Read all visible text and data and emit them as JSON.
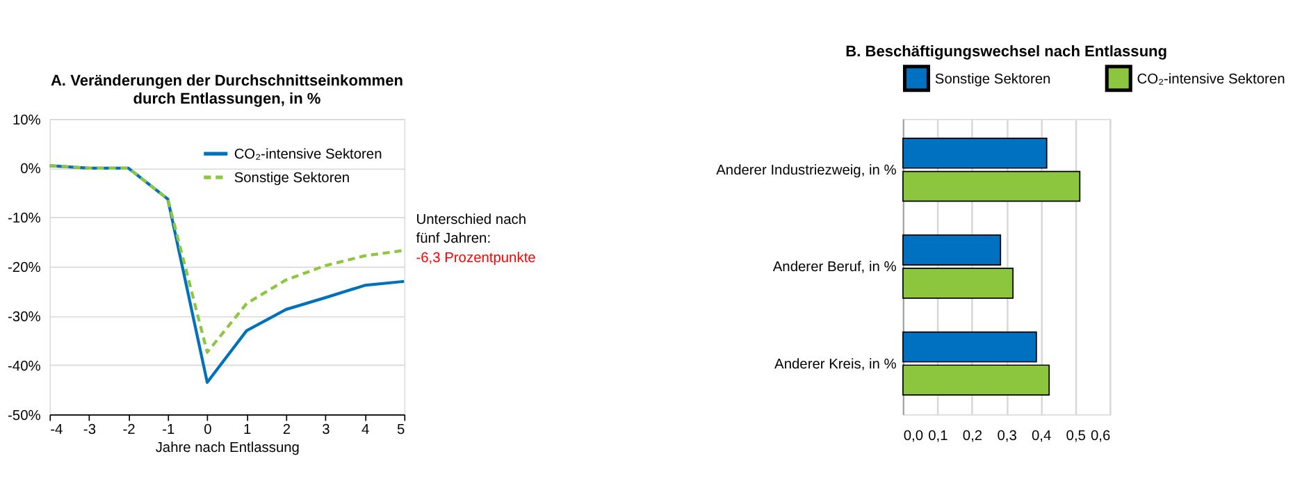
{
  "chart_data": [
    {
      "type": "line",
      "title": "A. Veränderungen der Durchschnittseinkommen\ndurch Entlassungen, in %",
      "xlabel": "Jahre nach Entlassung",
      "x": [
        -4,
        -3,
        -2,
        -1,
        0,
        1,
        2,
        3,
        4,
        5
      ],
      "series": [
        {
          "name": "CO₂-intensive Sektoren",
          "color": "#0072bc",
          "line_style": "solid",
          "values": [
            0.5,
            0,
            0,
            -6.3,
            -43.5,
            -33,
            -28.7,
            -26.3,
            -23.8,
            -23
          ]
        },
        {
          "name": "Sonstige Sektoren",
          "color": "#8dc63f",
          "line_style": "dashed",
          "values": [
            0.5,
            0,
            0,
            -6.3,
            -37.4,
            -27.5,
            -22.7,
            -19.8,
            -17.8,
            -16.7
          ]
        }
      ],
      "xlim": [
        -4,
        5
      ],
      "xticks": [
        -4,
        -3,
        -2,
        -1,
        0,
        1,
        2,
        3,
        4,
        5
      ],
      "ylim": [
        -50,
        10
      ],
      "yticks": [
        {
          "value": -50,
          "label": "-50%"
        },
        {
          "value": -40,
          "label": "-40%"
        },
        {
          "value": -30,
          "label": "-30%"
        },
        {
          "value": -20,
          "label": "-20%"
        },
        {
          "value": -10,
          "label": "-10%"
        },
        {
          "value": 0,
          "label": "0%"
        },
        {
          "value": 10,
          "label": "10%"
        }
      ],
      "grid": "y",
      "legend": "top right",
      "marker": "none",
      "annotations": [
        "Unterschied nach\nfünf Jahren:",
        "-6,3 Prozentpunkte"
      ]
    },
    {
      "type": "bar",
      "orientation": "horizontal",
      "title": "B. Beschäftigungswechsel nach Entlassung",
      "categories": [
        "Anderer Industriezweig, in %",
        "Anderer Beruf, in %",
        "Anderer Kreis, in %"
      ],
      "series": [
        {
          "name": "Sonstige Sektoren",
          "color": "#0070c0",
          "values": [
            0.417,
            0.283,
            0.387
          ]
        },
        {
          "name": "CO₂-intensive Sektoren",
          "color": "#8cc63f",
          "values": [
            0.513,
            0.319,
            0.424
          ]
        }
      ],
      "xlim": [
        0,
        0.6
      ],
      "xticks": [
        {
          "value": 0,
          "label": "0,0"
        },
        {
          "value": 0.1,
          "label": "0,1"
        },
        {
          "value": 0.2,
          "label": "0,2"
        },
        {
          "value": 0.3,
          "label": "0,3"
        },
        {
          "value": 0.4,
          "label": "0,4"
        },
        {
          "value": 0.5,
          "label": "0,5"
        },
        {
          "value": 0.6,
          "label": "0,6"
        }
      ],
      "grid": "x",
      "legend": "top"
    }
  ]
}
